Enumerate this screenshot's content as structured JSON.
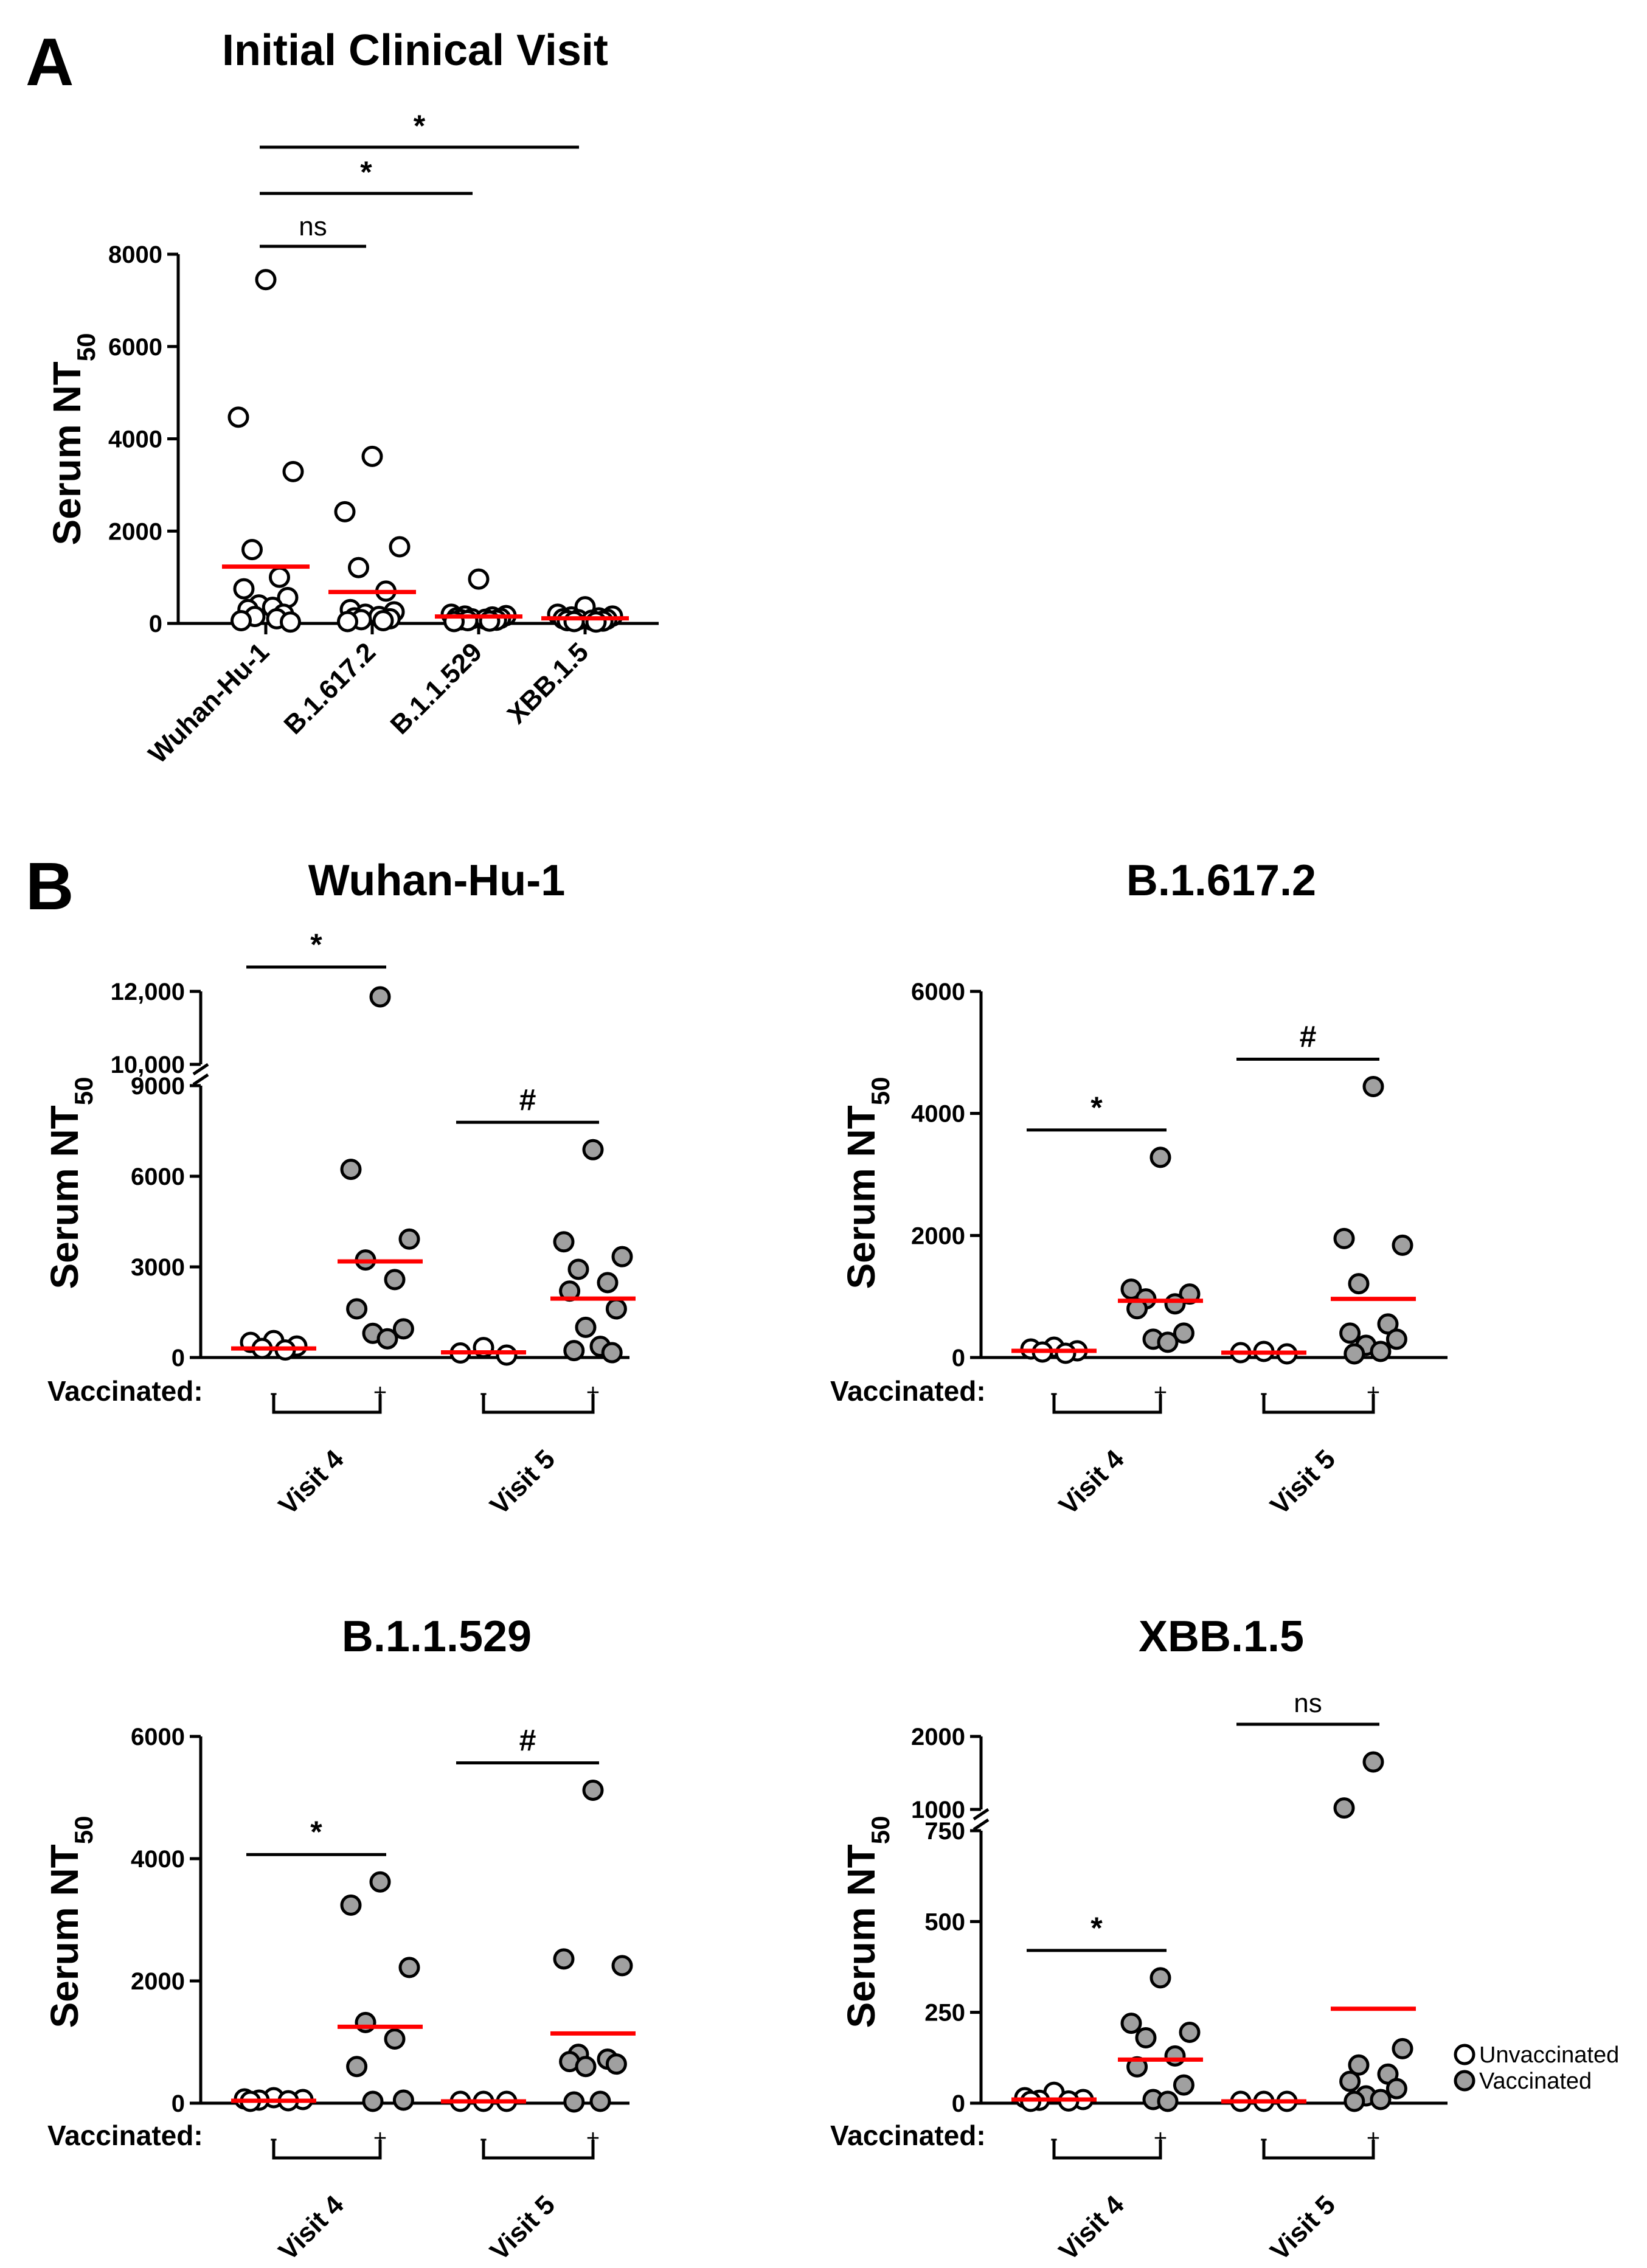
{
  "panels": {
    "A": {
      "panel_label": "A",
      "title": "Initial Clinical Visit",
      "ylabel": "Serum NT",
      "ylabel_sub": "50",
      "sig": [
        {
          "label": "ns",
          "from": "Wuhan-Hu-1",
          "to": "B.1.617.2"
        },
        {
          "label": "*",
          "from": "Wuhan-Hu-1",
          "to": "B.1.1.529"
        },
        {
          "label": "*",
          "from": "Wuhan-Hu-1",
          "to": "XBB.1.5"
        }
      ]
    },
    "B": {
      "panel_label": "B"
    }
  },
  "legend": {
    "unvaccinated": "Unvaccinated",
    "vaccinated": "Vaccinated",
    "unvaccinated_color": "#ffffff",
    "vaccinated_color": "#a0a0a0"
  },
  "colors": {
    "median": "#ff0000",
    "axis": "#000000"
  },
  "chart_data": [
    {
      "type": "scatter",
      "id": "A",
      "title": "Initial Clinical Visit",
      "xlabel": "",
      "ylabel": "Serum NT50",
      "ylim": [
        0,
        8000
      ],
      "yticks": [
        0,
        2000,
        4000,
        6000,
        8000
      ],
      "ytick_labels": [
        "0",
        "2000",
        "4000",
        "6000",
        "8000"
      ],
      "categories": [
        "Wuhan-Hu-1",
        "B.1.617.2",
        "B.1.1.529",
        "XBB.1.5"
      ],
      "series": [
        {
          "name": "Wuhan-Hu-1",
          "vaccinated": false,
          "median": 1230,
          "values": [
            7450,
            4470,
            3290,
            1600,
            1000,
            750,
            560,
            400,
            350,
            300,
            200,
            150,
            100,
            60,
            30
          ]
        },
        {
          "name": "B.1.617.2",
          "vaccinated": false,
          "median": 680,
          "values": [
            3620,
            2420,
            1660,
            1210,
            700,
            300,
            250,
            200,
            150,
            120,
            100,
            80,
            60,
            40
          ]
        },
        {
          "name": "B.1.1.529",
          "vaccinated": false,
          "median": 150,
          "values": [
            960,
            200,
            170,
            160,
            140,
            120,
            110,
            100,
            90,
            80,
            70,
            60,
            50,
            40
          ]
        },
        {
          "name": "XBB.1.5",
          "vaccinated": false,
          "median": 110,
          "values": [
            360,
            200,
            160,
            140,
            120,
            100,
            90,
            80,
            70,
            60,
            50,
            40,
            30
          ]
        }
      ]
    },
    {
      "type": "scatter",
      "id": "B1",
      "title": "Wuhan-Hu-1",
      "ylabel": "Serum NT50",
      "axis_break": {
        "lower_max": 9000,
        "upper_min": 10000,
        "upper_max": 12000
      },
      "yticks": [
        0,
        3000,
        6000,
        9000,
        10000,
        12000
      ],
      "ytick_labels": [
        "0",
        "3000",
        "6000",
        "9000",
        "10,000",
        "12,000"
      ],
      "xaxis_label": "Vaccinated:",
      "groups": [
        "Visit 4",
        "Visit 5"
      ],
      "series": [
        {
          "group": "Visit 4",
          "sign": "-",
          "vaccinated": false,
          "median": 300,
          "values": [
            560,
            500,
            380,
            300,
            250
          ]
        },
        {
          "group": "Visit 4",
          "sign": "+",
          "vaccinated": true,
          "median": 3180,
          "values": [
            11850,
            6230,
            3920,
            3230,
            2580,
            1610,
            950,
            800,
            620
          ]
        },
        {
          "group": "Visit 5",
          "sign": "-",
          "vaccinated": false,
          "median": 170,
          "values": [
            330,
            150,
            80
          ]
        },
        {
          "group": "Visit 5",
          "sign": "+",
          "vaccinated": true,
          "median": 1950,
          "values": [
            6880,
            3830,
            3340,
            2920,
            2480,
            2200,
            1610,
            1000,
            370,
            230,
            160
          ]
        }
      ],
      "sig": [
        {
          "label": "*",
          "group": "Visit 4"
        },
        {
          "label": "#",
          "group": "Visit 5"
        }
      ]
    },
    {
      "type": "scatter",
      "id": "B2",
      "title": "B.1.617.2",
      "ylabel": "Serum NT50",
      "ylim": [
        0,
        6000
      ],
      "yticks": [
        0,
        2000,
        4000,
        6000
      ],
      "ytick_labels": [
        "0",
        "2000",
        "4000",
        "6000"
      ],
      "xaxis_label": "Vaccinated:",
      "groups": [
        "Visit 4",
        "Visit 5"
      ],
      "series": [
        {
          "group": "Visit 4",
          "sign": "-",
          "vaccinated": false,
          "median": 110,
          "values": [
            170,
            140,
            110,
            90,
            70
          ]
        },
        {
          "group": "Visit 4",
          "sign": "+",
          "vaccinated": true,
          "median": 930,
          "values": [
            3280,
            1120,
            1040,
            960,
            880,
            800,
            400,
            300,
            250
          ]
        },
        {
          "group": "Visit 5",
          "sign": "-",
          "vaccinated": false,
          "median": 80,
          "values": [
            100,
            80,
            60
          ]
        },
        {
          "group": "Visit 5",
          "sign": "+",
          "vaccinated": true,
          "median": 960,
          "values": [
            4440,
            1950,
            1840,
            1210,
            550,
            400,
            300,
            200,
            100,
            60
          ]
        }
      ],
      "sig": [
        {
          "label": "*",
          "group": "Visit 4"
        },
        {
          "label": "#",
          "group": "Visit 5"
        }
      ]
    },
    {
      "type": "scatter",
      "id": "B3",
      "title": "B.1.1.529",
      "ylabel": "Serum NT50",
      "ylim": [
        0,
        6000
      ],
      "yticks": [
        0,
        2000,
        4000,
        6000
      ],
      "ytick_labels": [
        "0",
        "2000",
        "4000",
        "6000"
      ],
      "xaxis_label": "Vaccinated:",
      "groups": [
        "Visit 4",
        "Visit 5"
      ],
      "series": [
        {
          "group": "Visit 4",
          "sign": "-",
          "vaccinated": false,
          "median": 40,
          "values": [
            90,
            70,
            60,
            50,
            40,
            30
          ]
        },
        {
          "group": "Visit 4",
          "sign": "+",
          "vaccinated": true,
          "median": 1250,
          "values": [
            3620,
            3240,
            2220,
            1320,
            1050,
            600,
            50,
            30
          ]
        },
        {
          "group": "Visit 5",
          "sign": "-",
          "vaccinated": false,
          "median": 30,
          "values": [
            30,
            30,
            30
          ]
        },
        {
          "group": "Visit 5",
          "sign": "+",
          "vaccinated": true,
          "median": 1140,
          "values": [
            5120,
            2360,
            2250,
            800,
            720,
            680,
            640,
            600,
            30,
            20
          ]
        }
      ],
      "sig": [
        {
          "label": "*",
          "group": "Visit 4"
        },
        {
          "label": "#",
          "group": "Visit 5"
        }
      ]
    },
    {
      "type": "scatter",
      "id": "B4",
      "title": "XBB.1.5",
      "ylabel": "Serum NT50",
      "axis_break": {
        "lower_max": 750,
        "upper_min": 1000,
        "upper_max": 2000
      },
      "yticks": [
        0,
        250,
        500,
        750,
        1000,
        2000
      ],
      "ytick_labels": [
        "0",
        "250",
        "500",
        "750",
        "1000",
        "2000"
      ],
      "xaxis_label": "Vaccinated:",
      "groups": [
        "Visit 4",
        "Visit 5"
      ],
      "series": [
        {
          "group": "Visit 4",
          "sign": "-",
          "vaccinated": false,
          "median": 10,
          "values": [
            30,
            15,
            10,
            8,
            6,
            5
          ]
        },
        {
          "group": "Visit 4",
          "sign": "+",
          "vaccinated": true,
          "median": 120,
          "values": [
            345,
            220,
            195,
            180,
            130,
            100,
            50,
            10,
            5
          ]
        },
        {
          "group": "Visit 5",
          "sign": "-",
          "vaccinated": false,
          "median": 5,
          "values": [
            5,
            5,
            5
          ]
        },
        {
          "group": "Visit 5",
          "sign": "+",
          "vaccinated": true,
          "median": 260,
          "values": [
            1650,
            1020,
            150,
            105,
            80,
            60,
            40,
            20,
            10,
            5
          ]
        }
      ],
      "sig": [
        {
          "label": "*",
          "group": "Visit 4"
        },
        {
          "label": "ns",
          "group": "Visit 5"
        }
      ]
    }
  ]
}
